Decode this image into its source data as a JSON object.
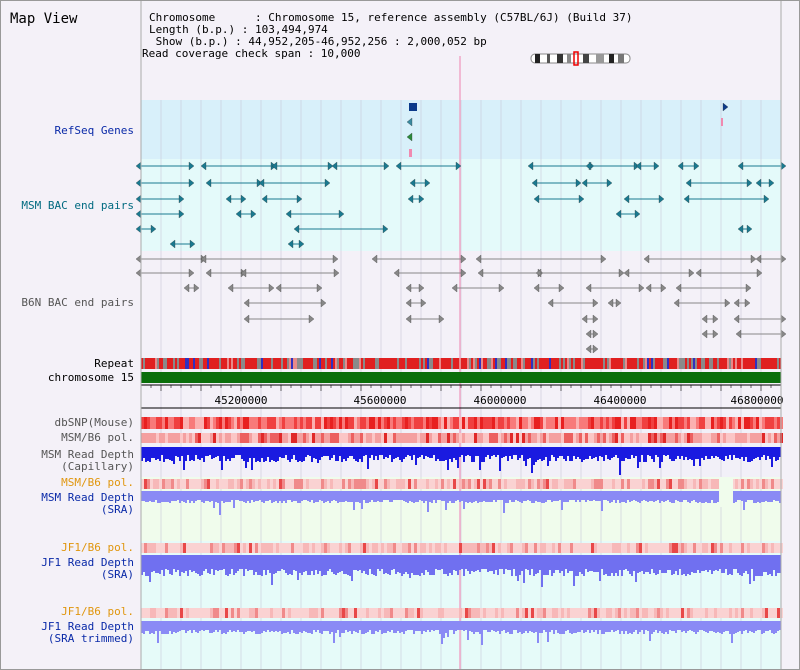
{
  "title": "Map View",
  "info": {
    "chromosome": "Chromosome      : Chromosome 15, reference assembly (C57BL/6J) (Build 37)",
    "length": "Length (b.p.) : 103,494,974",
    "show": " Show (b.p.) : 44,952,205-46,952,256 : 2,000,052 bp",
    "span": "Read coverage check span : 10,000"
  },
  "tracks": {
    "refseq": "RefSeq Genes",
    "msm_bac": "MSM BAC end pairs",
    "b6n_bac": "B6N BAC end pairs",
    "repeat": "Repeat",
    "chromosome": "chromosome 15",
    "dbsnp": "dbSNP(Mouse)",
    "msm_b6_pol_1": "MSM/B6 pol.",
    "msm_depth_cap_1": "MSM Read Depth",
    "msm_depth_cap_2": "(Capillary)",
    "msm_b6_pol_2": "MSM/B6 pol.",
    "msm_depth_sra_1": "MSM Read Depth",
    "msm_depth_sra_2": "(SRA)",
    "jf1_pol_1": "JF1/B6 pol.",
    "jf1_depth_1": "JF1 Read Depth",
    "jf1_depth_2": "(SRA)",
    "jf1_pol_2": "JF1/B6 pol.",
    "jf1_trim_1": "JF1 Read Depth",
    "jf1_trim_2": "(SRA trimmed)"
  },
  "axis_ticks": [
    "45200000",
    "45600000",
    "46000000",
    "46400000",
    "46800000"
  ],
  "colors": {
    "refseq_bg": "#d8f0fa",
    "bac_bg": "#e4fafa",
    "cov_bg": "#f0fcec",
    "jf1_bg": "#e6fbf9",
    "chromosome_bar": "#0a6e0a",
    "depth_blue": "#1a1ae0",
    "depth_light": "#7d7df5",
    "snp_red": "#e83030"
  }
}
